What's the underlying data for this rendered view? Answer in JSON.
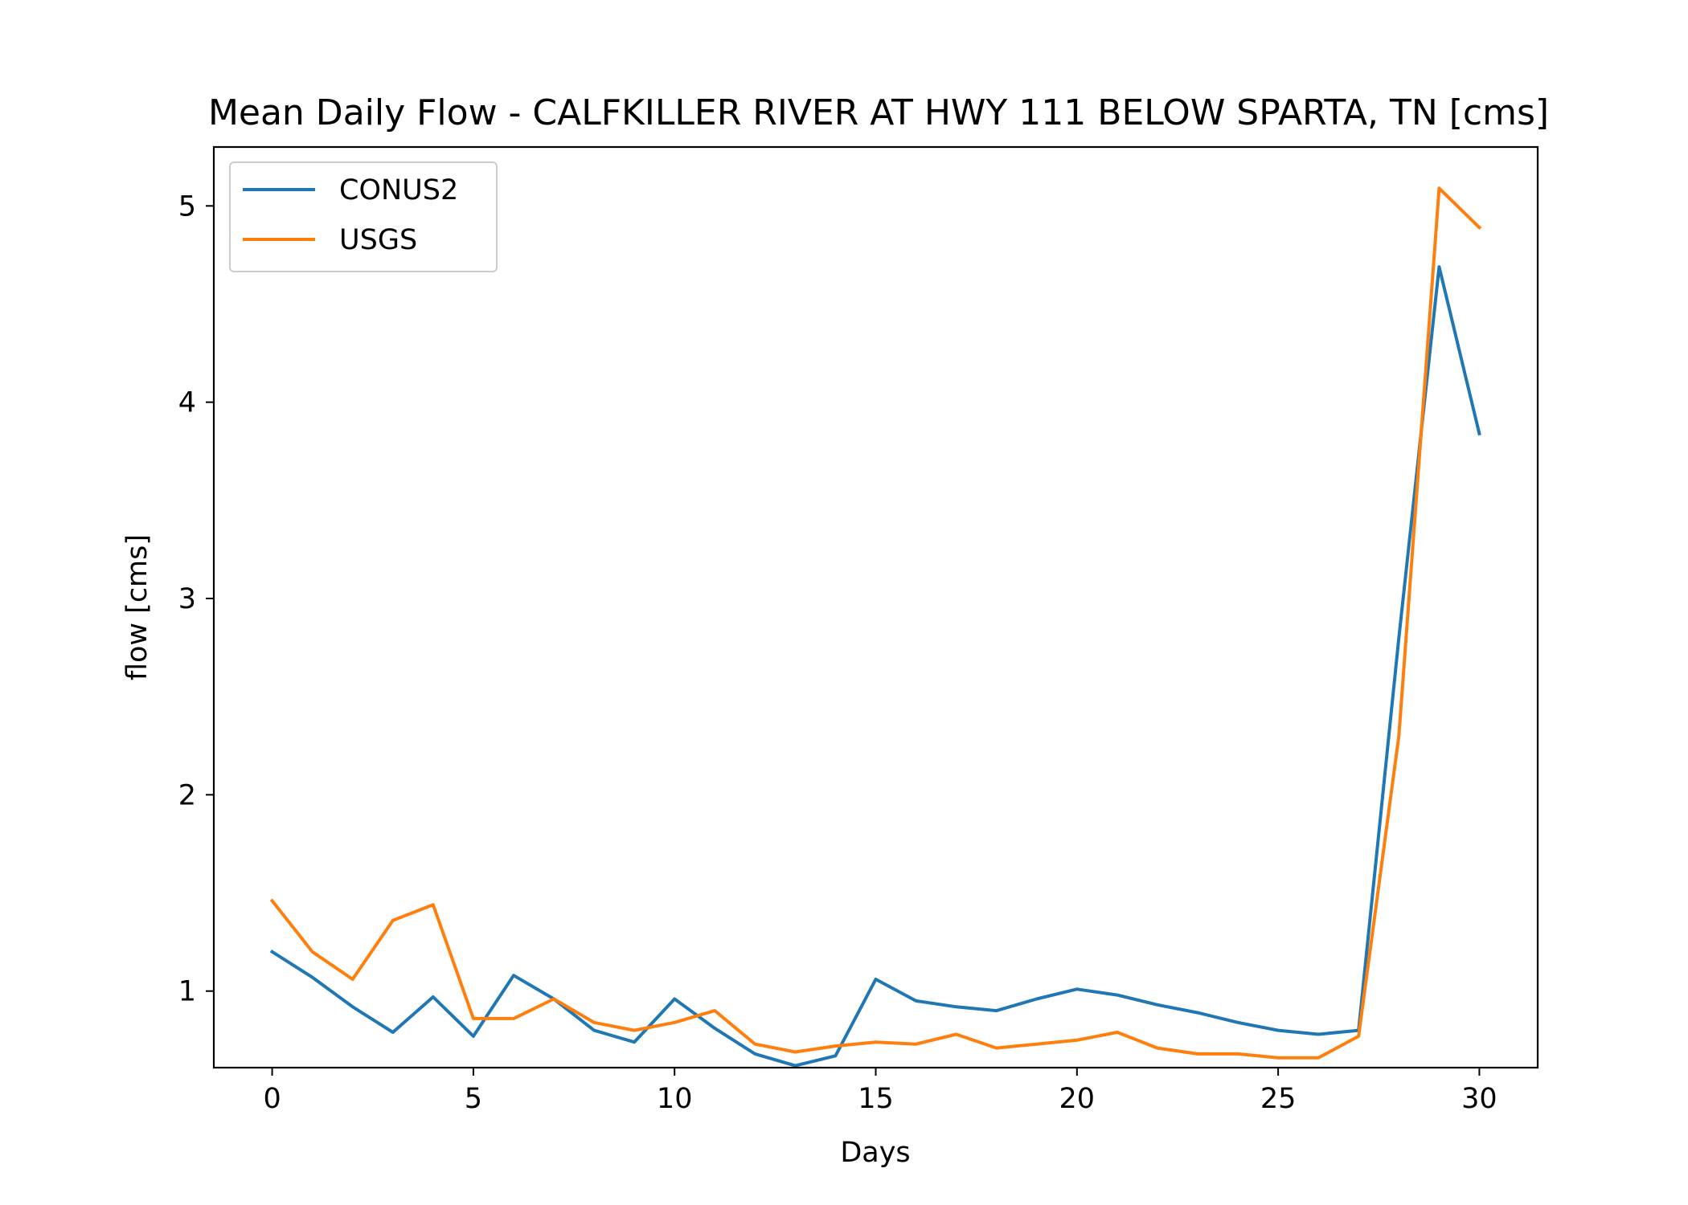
{
  "chart_data": {
    "type": "line",
    "title": "Mean Daily Flow - CALFKILLER RIVER AT HWY 111 BELOW SPARTA, TN [cms]",
    "xlabel": "Days",
    "ylabel": "flow [cms]",
    "xlim": [
      -1.45,
      31.45
    ],
    "ylim": [
      0.61,
      5.3
    ],
    "xticks": [
      0,
      5,
      10,
      15,
      20,
      25,
      30
    ],
    "yticks": [
      1,
      2,
      3,
      4,
      5
    ],
    "grid": false,
    "legend_position": "upper-left",
    "x": [
      0,
      1,
      2,
      3,
      4,
      5,
      6,
      7,
      8,
      9,
      10,
      11,
      12,
      13,
      14,
      15,
      16,
      17,
      18,
      19,
      20,
      21,
      22,
      23,
      24,
      25,
      26,
      27,
      28,
      29,
      30
    ],
    "series": [
      {
        "name": "CONUS2",
        "color": "#1f77b4",
        "values": [
          1.2,
          1.07,
          0.92,
          0.79,
          0.97,
          0.77,
          1.08,
          0.96,
          0.8,
          0.74,
          0.96,
          0.81,
          0.68,
          0.62,
          0.67,
          1.06,
          0.95,
          0.92,
          0.9,
          0.96,
          1.01,
          0.98,
          0.93,
          0.89,
          0.84,
          0.8,
          0.78,
          0.8,
          2.8,
          4.69,
          3.84
        ]
      },
      {
        "name": "USGS",
        "color": "#ff7f0e",
        "values": [
          1.46,
          1.2,
          1.06,
          1.36,
          1.44,
          0.86,
          0.86,
          0.96,
          0.84,
          0.8,
          0.84,
          0.9,
          0.73,
          0.69,
          0.72,
          0.74,
          0.73,
          0.78,
          0.71,
          0.73,
          0.75,
          0.79,
          0.71,
          0.68,
          0.68,
          0.66,
          0.66,
          0.77,
          2.3,
          5.09,
          4.89
        ]
      }
    ]
  }
}
